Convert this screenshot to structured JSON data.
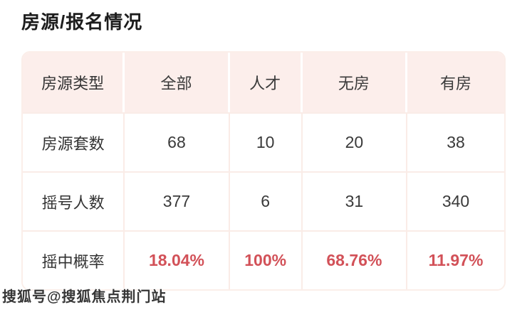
{
  "page": {
    "title": "房源/报名情况"
  },
  "table": {
    "columns": [
      "房源类型",
      "全部",
      "人才",
      "无房",
      "有房"
    ],
    "rows": [
      {
        "label": "房源套数",
        "values": [
          "68",
          "10",
          "20",
          "38"
        ]
      },
      {
        "label": "摇号人数",
        "values": [
          "377",
          "6",
          "31",
          "340"
        ]
      },
      {
        "label": "摇中概率",
        "values": [
          "18.04%",
          "100%",
          "68.76%",
          "11.97%"
        ]
      }
    ]
  },
  "chart_data": {
    "type": "table",
    "title": "房源/报名情况",
    "categories": [
      "全部",
      "人才",
      "无房",
      "有房"
    ],
    "series": [
      {
        "name": "房源套数",
        "values": [
          68,
          10,
          20,
          38
        ]
      },
      {
        "name": "摇号人数",
        "values": [
          377,
          6,
          31,
          340
        ]
      },
      {
        "name": "摇中概率",
        "values": [
          "18.04%",
          "100%",
          "68.76%",
          "11.97%"
        ]
      }
    ]
  },
  "watermark": "搜狐号@搜狐焦点荆门站",
  "colors": {
    "header_bg": "#fceeeb",
    "divider": "#faece7",
    "accent_red": "#d25158",
    "text_dark": "#333333",
    "title_text": "#1d1d1d"
  }
}
